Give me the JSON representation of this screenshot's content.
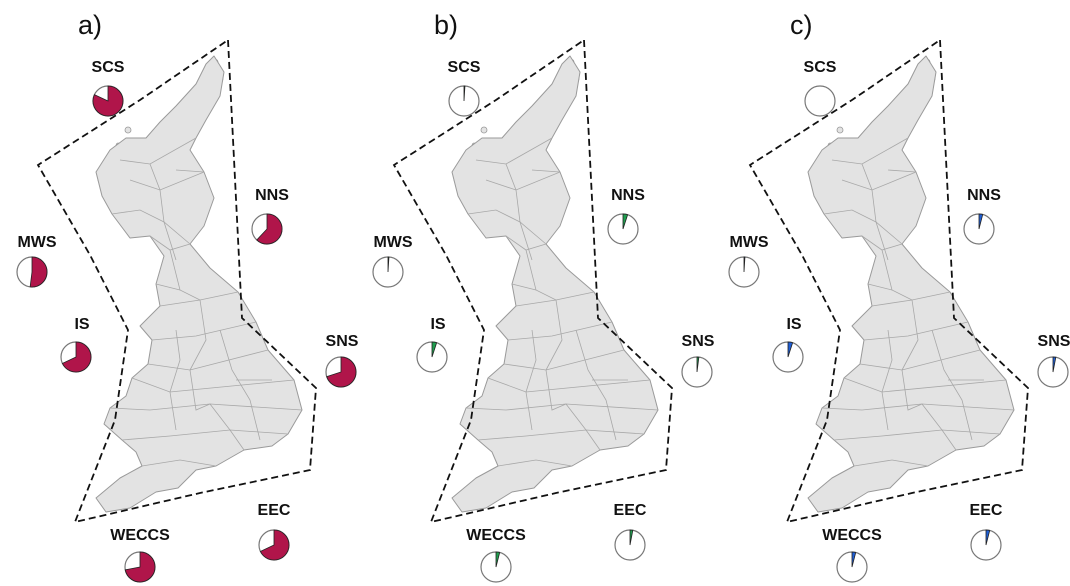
{
  "colors": {
    "background": "#ffffff",
    "land": "#e3e3e3",
    "zone_outline": "#111111"
  },
  "panels": [
    {
      "label": "a)",
      "wedge_color": "#b0154a",
      "regions": [
        {
          "name": "SCS",
          "fraction": 0.82
        },
        {
          "name": "NNS",
          "fraction": 0.62
        },
        {
          "name": "MWS",
          "fraction": 0.52
        },
        {
          "name": "IS",
          "fraction": 0.68
        },
        {
          "name": "SNS",
          "fraction": 0.7
        },
        {
          "name": "EEC",
          "fraction": 0.68
        },
        {
          "name": "WECCS",
          "fraction": 0.72
        }
      ]
    },
    {
      "label": "b)",
      "wedge_color": "#1f9e4e",
      "regions": [
        {
          "name": "SCS",
          "fraction": 0.01
        },
        {
          "name": "NNS",
          "fraction": 0.05
        },
        {
          "name": "MWS",
          "fraction": 0.01
        },
        {
          "name": "IS",
          "fraction": 0.05
        },
        {
          "name": "SNS",
          "fraction": 0.02
        },
        {
          "name": "EEC",
          "fraction": 0.03
        },
        {
          "name": "WECCS",
          "fraction": 0.04
        }
      ]
    },
    {
      "label": "c)",
      "wedge_color": "#1f5fd6",
      "regions": [
        {
          "name": "SCS",
          "fraction": 0.0
        },
        {
          "name": "NNS",
          "fraction": 0.04
        },
        {
          "name": "MWS",
          "fraction": 0.01
        },
        {
          "name": "IS",
          "fraction": 0.05
        },
        {
          "name": "SNS",
          "fraction": 0.03
        },
        {
          "name": "EEC",
          "fraction": 0.04
        },
        {
          "name": "WECCS",
          "fraction": 0.04
        }
      ]
    }
  ]
}
